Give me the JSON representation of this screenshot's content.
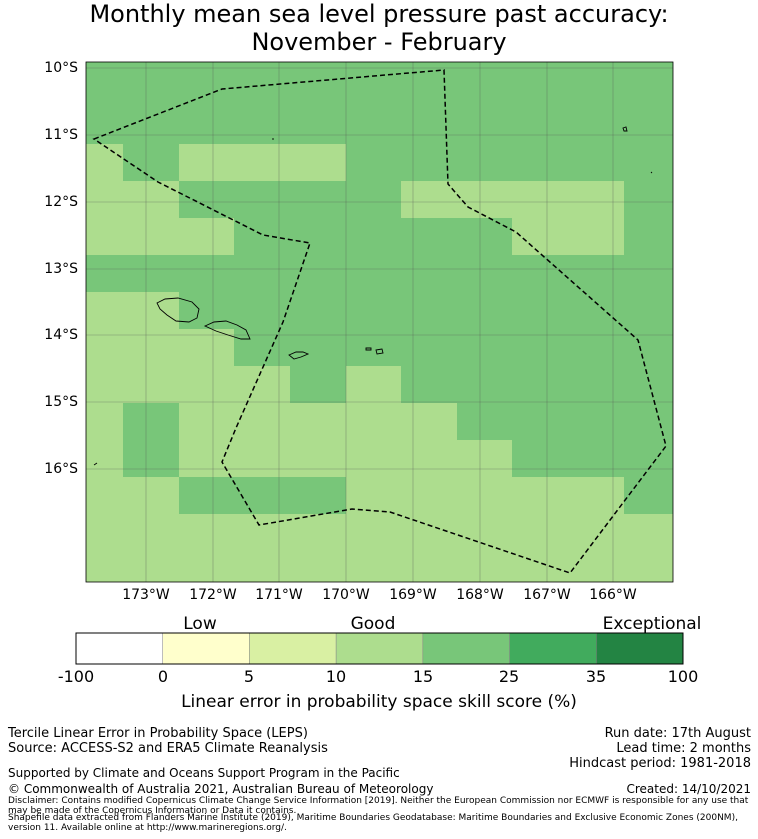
{
  "title": {
    "line1": "Monthly mean sea level pressure past accuracy:",
    "line2": "November - February"
  },
  "map": {
    "lat_labels": [
      "10°S",
      "11°S",
      "12°S",
      "13°S",
      "14°S",
      "15°S",
      "16°S"
    ],
    "lon_labels": [
      "173°W",
      "172°W",
      "171°W",
      "170°W",
      "169°W",
      "168°W",
      "167°W",
      "166°W"
    ],
    "lat_range": [
      -17.7,
      -9.9
    ],
    "lon_range": [
      -173.9,
      -165.1
    ],
    "colors": {
      "band_15_25": "#78c679",
      "band_10_15": "#addd8e",
      "grid": "#555555",
      "boundary": "#000000"
    }
  },
  "colorbar": {
    "categories": [
      "Low",
      "Good",
      "Exceptional"
    ],
    "ticks": [
      "-100",
      "0",
      "5",
      "10",
      "15",
      "25",
      "35",
      "100"
    ],
    "colors": [
      "#ffffff",
      "#ffffcc",
      "#d9f0a3",
      "#addd8e",
      "#78c679",
      "#41ab5d",
      "#238443"
    ],
    "title": "Linear error in probability space skill score (%)"
  },
  "footer": {
    "line1": "Tercile Linear Error in Probability Space (LEPS)",
    "line2": "Source: ACCESS-S2 and ERA5 Climate Reanalysis",
    "run_date": "Run date: 17th August",
    "lead_time": "Lead time: 2 months",
    "hindcast": "Hindcast period: 1981-2018",
    "supported": "Supported by Climate and Oceans Support Program in the Pacific",
    "copyright": "© Commonwealth of Australia 2021, Australian Bureau of Meteorology",
    "created": "Created: 14/10/2021",
    "disclaimer": "Disclaimer: Contains modified Copernicus Climate Change Service Information [2019]. Neither the European Commission nor ECMWF is responsible for any use that may be made of the Copernicus Information or Data it contains.",
    "shapefile": "Shapefile data extracted from Flanders Marine Institute (2019), Maritime Boundaries Geodatabase: Maritime Boundaries and Exclusive Economic Zones (200NM), version 11. Available online at http://www.marineregions.org/."
  }
}
